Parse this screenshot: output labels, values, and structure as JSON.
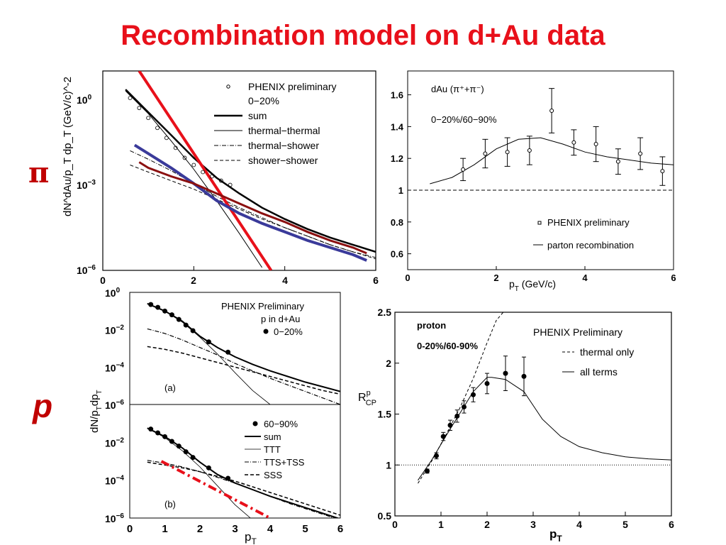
{
  "title": "Recombination model on d+Au data",
  "side_labels": {
    "pion": "π",
    "proton": "p"
  },
  "colors": {
    "title": "#e8101a",
    "side_label": "#c00000",
    "red_line": "#e8101a",
    "blue_line": "#3a3a9a",
    "darkred_line": "#8b1010"
  },
  "chart_data": [
    {
      "id": "pion-spectrum",
      "type": "line",
      "ylabel": "dN^dAu/p_T dp_T (GeV/c)^-2",
      "log_y": true,
      "xlim": [
        0,
        6
      ],
      "ylim_log10": [
        -6,
        1
      ],
      "x_ticks": [
        "0",
        "2",
        "4",
        "6"
      ],
      "y_ticks": [
        "10^0",
        "10^-3",
        "10^-6"
      ],
      "legend": [
        "PHENIX preliminary",
        "0-20%",
        "sum",
        "thermal-thermal",
        "thermal-shower",
        "shower-shower"
      ],
      "legend_text": {
        "marker": "PHENIX preliminary",
        "centrality": "0−20%",
        "sum": "sum",
        "tt": "thermal−thermal",
        "ts": "thermal−shower",
        "ss": "shower−shower"
      },
      "data_points": {
        "x": [
          0.6,
          0.8,
          1.0,
          1.2,
          1.4,
          1.6,
          1.8,
          2.0,
          2.2,
          2.4,
          2.6,
          2.8
        ],
        "log10_y": [
          0.05,
          -0.3,
          -0.65,
          -1.0,
          -1.35,
          -1.7,
          -2.05,
          -2.3,
          -2.55,
          -2.7,
          -2.85,
          -3.0
        ]
      },
      "series": [
        {
          "name": "sum",
          "x": [
            0.5,
            1,
            1.5,
            2,
            2.5,
            3,
            3.5,
            4,
            4.5,
            5,
            5.5,
            6
          ],
          "log10_y": [
            0.35,
            -0.45,
            -1.25,
            -2.05,
            -2.75,
            -3.3,
            -3.8,
            -4.2,
            -4.55,
            -4.85,
            -5.1,
            -5.35
          ]
        },
        {
          "name": "thermal-thermal",
          "x": [
            0.5,
            1,
            1.5,
            2,
            2.5,
            3,
            3.5
          ],
          "log10_y": [
            0.3,
            -0.5,
            -1.45,
            -2.45,
            -3.55,
            -4.7,
            -5.9
          ]
        },
        {
          "name": "thermal-shower",
          "x": [
            0.6,
            1,
            1.5,
            2,
            2.5,
            3,
            3.5,
            4,
            4.5,
            5,
            5.5,
            6
          ],
          "log10_y": [
            -1.8,
            -2.1,
            -2.5,
            -2.95,
            -3.4,
            -3.8,
            -4.15,
            -4.5,
            -4.8,
            -5.1,
            -5.35,
            -5.55
          ]
        },
        {
          "name": "shower-shower",
          "x": [
            0.6,
            1,
            1.5,
            2,
            2.5,
            3,
            3.5,
            4,
            4.5,
            5,
            5.5,
            6
          ],
          "log10_y": [
            -2.3,
            -2.55,
            -2.85,
            -3.15,
            -3.5,
            -3.85,
            -4.2,
            -4.5,
            -4.8,
            -5.1,
            -5.35,
            -5.6
          ]
        },
        {
          "name": "red fit",
          "x": [
            0.8,
            3.7
          ],
          "log10_y": [
            1.0,
            -6.0
          ]
        },
        {
          "name": "blue curve",
          "x": [
            0.7,
            1,
            1.5,
            2,
            2.5,
            3,
            3.5,
            4,
            4.5,
            5,
            5.5,
            5.8
          ],
          "log10_y": [
            -1.6,
            -1.9,
            -2.4,
            -2.95,
            -3.55,
            -4.0,
            -4.35,
            -4.65,
            -4.95,
            -5.2,
            -5.45,
            -5.65
          ]
        },
        {
          "name": "dark red curve",
          "x": [
            0.8,
            1,
            1.5,
            2,
            2.5,
            3,
            3.5,
            4,
            4.5,
            5,
            5.5,
            5.8
          ],
          "log10_y": [
            -2.2,
            -2.4,
            -2.7,
            -2.95,
            -3.3,
            -3.65,
            -4.0,
            -4.3,
            -4.65,
            -4.95,
            -5.2,
            -5.4
          ]
        }
      ]
    },
    {
      "id": "pion-rcp",
      "type": "line",
      "title_text": "dAu (π⁺+π⁻)",
      "centrality": "0−20%/60−90%",
      "xlabel": "p_T (GeV/c)",
      "xlim": [
        0,
        6
      ],
      "ylim": [
        0.5,
        1.75
      ],
      "x_ticks": [
        "0",
        "2",
        "4",
        "6"
      ],
      "y_ticks": [
        "0.6",
        "0.8",
        "1",
        "1.2",
        "1.4",
        "1.6"
      ],
      "legend_text": {
        "marker": "PHENIX preliminary",
        "line": "parton recombination"
      },
      "points": {
        "x": [
          1.25,
          1.75,
          2.25,
          2.75,
          3.25,
          3.75,
          4.25,
          4.75,
          5.25,
          5.75
        ],
        "y": [
          1.13,
          1.23,
          1.24,
          1.25,
          1.5,
          1.3,
          1.29,
          1.18,
          1.23,
          1.12
        ],
        "err": [
          0.07,
          0.09,
          0.09,
          0.09,
          0.14,
          0.08,
          0.11,
          0.08,
          0.1,
          0.09
        ]
      },
      "curve": {
        "x": [
          0.5,
          1,
          1.5,
          2,
          2.5,
          3,
          3.5,
          4,
          4.5,
          5,
          5.5,
          6
        ],
        "y": [
          1.04,
          1.08,
          1.16,
          1.26,
          1.32,
          1.33,
          1.29,
          1.24,
          1.21,
          1.19,
          1.17,
          1.16
        ]
      },
      "reference_y": 1
    },
    {
      "id": "proton-spectrum-a",
      "type": "line",
      "ylabel": "dN/p_T dp_T",
      "log_y": true,
      "xlim": [
        0,
        6
      ],
      "ylim_log10": [
        -6,
        0
      ],
      "y_ticks": [
        "10^0",
        "10^-2",
        "10^-4",
        "10^-6"
      ],
      "legend_text": {
        "l1": "PHENIX Preliminary",
        "l2": "p in d+Au",
        "l3": "0−20%"
      },
      "panel_label": "(a)",
      "points": {
        "x": [
          0.6,
          0.8,
          1.0,
          1.2,
          1.4,
          1.6,
          1.8,
          2.25,
          2.8
        ],
        "log10_y": [
          -0.65,
          -0.8,
          -1.0,
          -1.2,
          -1.45,
          -1.75,
          -2.05,
          -2.65,
          -3.2
        ]
      },
      "series": [
        {
          "name": "sum",
          "x": [
            0.5,
            1,
            1.5,
            2,
            2.5,
            3,
            3.5,
            4,
            4.5,
            5,
            5.5,
            6
          ],
          "log10_y": [
            -0.6,
            -1.0,
            -1.55,
            -2.35,
            -2.95,
            -3.45,
            -3.85,
            -4.2,
            -4.5,
            -4.8,
            -5.05,
            -5.3
          ]
        },
        {
          "name": "TTT",
          "x": [
            0.5,
            1,
            1.5,
            2,
            2.5,
            3,
            3.5,
            4
          ],
          "log10_y": [
            -0.6,
            -1.0,
            -1.6,
            -2.4,
            -3.3,
            -4.3,
            -5.25,
            -6.0
          ]
        },
        {
          "name": "TTS+TSS",
          "x": [
            0.5,
            1,
            1.5,
            2,
            2.5,
            3,
            3.5,
            4,
            4.5,
            5,
            5.5,
            6
          ],
          "log10_y": [
            -1.95,
            -2.2,
            -2.55,
            -2.95,
            -3.35,
            -3.8,
            -4.2,
            -4.6,
            -4.95,
            -5.3,
            -5.65,
            -6.0
          ]
        },
        {
          "name": "SSS",
          "x": [
            0.5,
            1,
            1.5,
            2,
            2.5,
            3,
            3.5,
            4,
            4.5,
            5,
            5.5,
            6
          ],
          "log10_y": [
            -2.9,
            -3.05,
            -3.25,
            -3.5,
            -3.75,
            -4.0,
            -4.25,
            -4.5,
            -4.75,
            -5.0,
            -5.25,
            -5.45
          ]
        }
      ]
    },
    {
      "id": "proton-spectrum-b",
      "type": "line",
      "xlabel": "p_T",
      "log_y": true,
      "xlim": [
        0,
        6
      ],
      "ylim_log10": [
        -6,
        0
      ],
      "x_ticks": [
        "0",
        "1",
        "2",
        "3",
        "4",
        "5",
        "6"
      ],
      "y_ticks": [
        "10^-2",
        "10^-4",
        "10^-6"
      ],
      "legend_text": {
        "l1": "60−90%",
        "sum": "sum",
        "ttt": "TTT",
        "tts": "TTS+TSS",
        "sss": "SSS"
      },
      "panel_label": "(b)",
      "points": {
        "x": [
          0.6,
          0.8,
          1.0,
          1.2,
          1.4,
          1.6,
          1.8,
          2.25,
          2.8
        ],
        "log10_y": [
          -1.3,
          -1.5,
          -1.7,
          -1.95,
          -2.2,
          -2.5,
          -2.8,
          -3.35,
          -3.9
        ]
      },
      "series": [
        {
          "name": "sum",
          "x": [
            0.5,
            1,
            1.5,
            2,
            2.5,
            3,
            3.5,
            4,
            4.5,
            5,
            5.5,
            6
          ],
          "log10_y": [
            -1.25,
            -1.7,
            -2.3,
            -3.05,
            -3.7,
            -4.15,
            -4.5,
            -4.85,
            -5.15,
            -5.45,
            -5.75,
            -6.05
          ]
        },
        {
          "name": "TTT",
          "x": [
            0.5,
            1,
            1.5,
            2,
            2.5,
            3,
            3.5
          ],
          "log10_y": [
            -1.25,
            -1.75,
            -2.45,
            -3.3,
            -4.3,
            -5.3,
            -6.1
          ]
        },
        {
          "name": "TTS+TSS",
          "x": [
            0.5,
            1,
            1.5,
            2,
            2.5,
            3,
            3.5,
            4,
            4.5,
            5,
            5.5,
            6
          ],
          "log10_y": [
            -2.95,
            -3.1,
            -3.3,
            -3.55,
            -3.85,
            -4.15,
            -4.5,
            -4.85,
            -5.2,
            -5.5,
            -5.8,
            -6.1
          ]
        },
        {
          "name": "SSS",
          "x": [
            0.5,
            1,
            1.5,
            2,
            2.5,
            3,
            3.5,
            4,
            4.5,
            5,
            5.5,
            6
          ],
          "log10_y": [
            -3.05,
            -3.2,
            -3.35,
            -3.55,
            -3.8,
            -4.05,
            -4.35,
            -4.65,
            -4.95,
            -5.25,
            -5.55,
            -5.85
          ]
        },
        {
          "name": "red dash-dot",
          "x": [
            0.9,
            4.0
          ],
          "log10_y": [
            -3.0,
            -6.0
          ]
        }
      ]
    },
    {
      "id": "proton-rcp",
      "type": "line",
      "xlabel": "p_T",
      "ylabel": "R_CP^p",
      "xlim": [
        0,
        6
      ],
      "ylim": [
        0.5,
        2.5
      ],
      "x_ticks": [
        "0",
        "1",
        "2",
        "3",
        "4",
        "5",
        "6"
      ],
      "y_ticks": [
        "0.5",
        "1",
        "1.5",
        "2",
        "2.5"
      ],
      "annotations": {
        "proton": "proton",
        "centrality": "0-20%/60-90%"
      },
      "legend_text": {
        "title": "PHENIX Preliminary",
        "dashed": "thermal only",
        "solid": "all terms"
      },
      "points": {
        "x": [
          0.7,
          0.9,
          1.05,
          1.2,
          1.35,
          1.5,
          1.7,
          2.0,
          2.4,
          2.8
        ],
        "y": [
          0.94,
          1.09,
          1.28,
          1.39,
          1.48,
          1.57,
          1.69,
          1.8,
          1.9,
          1.87
        ],
        "err": [
          0.02,
          0.03,
          0.04,
          0.05,
          0.06,
          0.06,
          0.07,
          0.1,
          0.17,
          0.19
        ]
      },
      "series": [
        {
          "name": "thermal only",
          "x": [
            0.5,
            0.8,
            1.1,
            1.4,
            1.7,
            2.0,
            2.2,
            2.35
          ],
          "y": [
            0.82,
            1.04,
            1.29,
            1.55,
            1.85,
            2.2,
            2.42,
            2.5
          ]
        },
        {
          "name": "all terms",
          "x": [
            0.5,
            0.8,
            1.1,
            1.4,
            1.7,
            2.0,
            2.1,
            2.4,
            2.8,
            3.2,
            3.6,
            4.0,
            4.5,
            5.0,
            5.5,
            6.0
          ],
          "y": [
            0.85,
            1.05,
            1.28,
            1.5,
            1.72,
            1.86,
            1.86,
            1.84,
            1.72,
            1.45,
            1.28,
            1.18,
            1.12,
            1.08,
            1.06,
            1.05
          ]
        }
      ],
      "reference_y": 1
    }
  ]
}
